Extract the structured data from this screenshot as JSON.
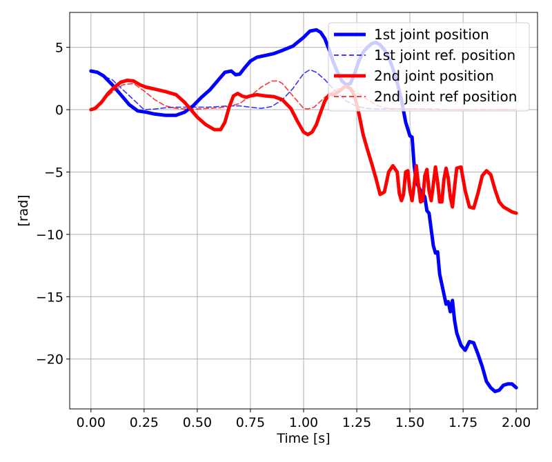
{
  "chart_data": {
    "type": "line",
    "title": "",
    "xlabel": "Time [s]",
    "ylabel": "[rad]",
    "xlim": [
      -0.1,
      2.1
    ],
    "ylim": [
      -24.0,
      7.8
    ],
    "xticks": [
      0.0,
      0.25,
      0.5,
      0.75,
      1.0,
      1.25,
      1.5,
      1.75,
      2.0
    ],
    "xtick_labels": [
      "0.00",
      "0.25",
      "0.50",
      "0.75",
      "1.00",
      "1.25",
      "1.50",
      "1.75",
      "2.00"
    ],
    "yticks": [
      5,
      0,
      -5,
      -10,
      -15,
      -20
    ],
    "ytick_labels": [
      "5",
      "0",
      "−5",
      "−10",
      "−15",
      "−20"
    ],
    "grid": true,
    "legend_position": "top-right",
    "series": [
      {
        "name": "1st joint position",
        "color": "#0000ff",
        "style": "solid",
        "x": [
          0.0,
          0.03,
          0.06,
          0.1,
          0.14,
          0.18,
          0.22,
          0.26,
          0.3,
          0.35,
          0.4,
          0.44,
          0.48,
          0.52,
          0.56,
          0.6,
          0.63,
          0.66,
          0.68,
          0.7,
          0.72,
          0.75,
          0.78,
          0.82,
          0.86,
          0.9,
          0.95,
          1.0,
          1.03,
          1.06,
          1.08,
          1.1,
          1.12,
          1.14,
          1.16,
          1.18,
          1.2,
          1.22,
          1.24,
          1.26,
          1.28,
          1.3,
          1.32,
          1.34,
          1.36,
          1.38,
          1.4,
          1.42,
          1.44,
          1.46,
          1.48,
          1.5,
          1.51,
          1.52,
          1.53,
          1.55,
          1.57,
          1.58,
          1.59,
          1.6,
          1.61,
          1.62,
          1.63,
          1.64,
          1.65,
          1.66,
          1.67,
          1.68,
          1.69,
          1.7,
          1.71,
          1.72,
          1.74,
          1.76,
          1.78,
          1.8,
          1.82,
          1.84,
          1.86,
          1.88,
          1.9,
          1.92,
          1.94,
          1.96,
          1.98,
          2.0
        ],
        "y": [
          3.1,
          3.0,
          2.7,
          2.0,
          1.2,
          0.4,
          -0.1,
          -0.2,
          -0.35,
          -0.45,
          -0.45,
          -0.2,
          0.3,
          1.0,
          1.6,
          2.4,
          3.0,
          3.1,
          2.8,
          2.85,
          3.3,
          3.9,
          4.2,
          4.35,
          4.5,
          4.75,
          5.1,
          5.8,
          6.3,
          6.4,
          6.2,
          5.7,
          4.8,
          3.8,
          3.0,
          2.3,
          2.0,
          2.1,
          2.9,
          3.9,
          4.6,
          5.0,
          5.3,
          5.4,
          5.2,
          4.8,
          4.2,
          3.3,
          2.2,
          0.8,
          -1.0,
          -2.1,
          -2.2,
          -4.5,
          -5.8,
          -6.5,
          -7.0,
          -8.1,
          -8.3,
          -9.6,
          -10.9,
          -11.5,
          -11.4,
          -13.2,
          -14.0,
          -14.8,
          -15.6,
          -15.4,
          -16.2,
          -15.3,
          -16.9,
          -17.9,
          -18.9,
          -19.3,
          -18.6,
          -18.7,
          -19.6,
          -20.6,
          -21.8,
          -22.3,
          -22.6,
          -22.5,
          -22.1,
          -22.0,
          -22.0,
          -22.3
        ]
      },
      {
        "name": "1st joint ref. position",
        "color": "#0000ff",
        "style": "dashed",
        "x": [
          0.0,
          0.1,
          0.2,
          0.25,
          0.3,
          0.35,
          0.4,
          0.45,
          0.5,
          0.55,
          0.6,
          0.65,
          0.7,
          0.75,
          0.8,
          0.85,
          0.9,
          0.95,
          1.0,
          1.03,
          1.06,
          1.1,
          1.15,
          1.2,
          1.25,
          1.3,
          1.35,
          1.4,
          1.5,
          1.6,
          1.7,
          1.8,
          1.9,
          2.0
        ],
        "y": [
          3.1,
          2.4,
          0.8,
          0.0,
          0.05,
          0.15,
          0.2,
          0.2,
          0.2,
          0.2,
          0.25,
          0.3,
          0.3,
          0.2,
          0.1,
          0.25,
          0.8,
          1.7,
          2.9,
          3.2,
          3.0,
          2.4,
          1.5,
          0.7,
          0.25,
          0.1,
          0.05,
          0.05,
          0.05,
          0.05,
          0.0,
          0.0,
          0.0,
          0.0
        ]
      },
      {
        "name": "2nd joint position",
        "color": "#ff0000",
        "style": "solid",
        "x": [
          0.0,
          0.02,
          0.05,
          0.08,
          0.11,
          0.14,
          0.17,
          0.2,
          0.23,
          0.26,
          0.3,
          0.35,
          0.4,
          0.44,
          0.47,
          0.5,
          0.54,
          0.58,
          0.61,
          0.63,
          0.65,
          0.67,
          0.69,
          0.71,
          0.73,
          0.75,
          0.78,
          0.82,
          0.86,
          0.9,
          0.94,
          0.97,
          1.0,
          1.02,
          1.04,
          1.06,
          1.08,
          1.1,
          1.12,
          1.14,
          1.17,
          1.19,
          1.2,
          1.22,
          1.24,
          1.26,
          1.28,
          1.3,
          1.32,
          1.34,
          1.36,
          1.38,
          1.4,
          1.42,
          1.44,
          1.45,
          1.46,
          1.47,
          1.48,
          1.49,
          1.5,
          1.51,
          1.52,
          1.53,
          1.54,
          1.55,
          1.56,
          1.57,
          1.58,
          1.59,
          1.6,
          1.61,
          1.62,
          1.63,
          1.64,
          1.65,
          1.66,
          1.67,
          1.68,
          1.69,
          1.7,
          1.71,
          1.72,
          1.74,
          1.76,
          1.78,
          1.8,
          1.82,
          1.84,
          1.86,
          1.88,
          1.9,
          1.92,
          1.94,
          1.96,
          1.98,
          2.0
        ],
        "y": [
          0.0,
          0.1,
          0.6,
          1.3,
          1.8,
          2.2,
          2.35,
          2.3,
          2.0,
          1.8,
          1.65,
          1.45,
          1.2,
          0.6,
          0.0,
          -0.6,
          -1.2,
          -1.6,
          -1.6,
          -1.0,
          0.2,
          1.1,
          1.3,
          1.1,
          1.0,
          1.1,
          1.2,
          1.1,
          1.05,
          0.8,
          0.1,
          -0.9,
          -1.8,
          -2.0,
          -1.8,
          -1.2,
          -0.2,
          0.7,
          1.2,
          1.2,
          1.5,
          1.8,
          1.85,
          1.7,
          1.1,
          -0.3,
          -2.0,
          -3.2,
          -4.3,
          -5.5,
          -6.8,
          -6.6,
          -5.0,
          -4.5,
          -5.0,
          -6.7,
          -7.3,
          -6.8,
          -5.0,
          -4.9,
          -6.5,
          -7.3,
          -6.0,
          -4.5,
          -6.0,
          -7.4,
          -7.3,
          -5.3,
          -4.8,
          -6.5,
          -7.3,
          -6.0,
          -4.6,
          -5.8,
          -7.4,
          -7.4,
          -5.6,
          -4.7,
          -5.5,
          -7.0,
          -7.8,
          -6.2,
          -4.7,
          -4.6,
          -6.5,
          -7.8,
          -7.9,
          -6.7,
          -5.3,
          -4.9,
          -5.2,
          -6.4,
          -7.4,
          -7.8,
          -8.0,
          -8.2,
          -8.3
        ]
      },
      {
        "name": "2nd joint ref position",
        "color": "#ff0000",
        "style": "dashed",
        "x": [
          0.0,
          0.05,
          0.1,
          0.15,
          0.2,
          0.25,
          0.3,
          0.35,
          0.4,
          0.45,
          0.5,
          0.55,
          0.6,
          0.65,
          0.7,
          0.75,
          0.8,
          0.85,
          0.88,
          0.9,
          0.95,
          1.0,
          1.02,
          1.05,
          1.1,
          1.15,
          1.2,
          1.25,
          1.3,
          1.35,
          1.4,
          1.5,
          1.6,
          1.7,
          1.8,
          1.9,
          2.0
        ],
        "y": [
          0.0,
          0.6,
          1.4,
          2.0,
          2.1,
          1.5,
          0.8,
          0.3,
          0.1,
          0.05,
          0.05,
          0.1,
          0.15,
          0.25,
          0.5,
          1.1,
          1.8,
          2.3,
          2.3,
          2.1,
          1.1,
          0.1,
          0.05,
          0.2,
          1.0,
          1.6,
          1.8,
          1.4,
          0.8,
          0.3,
          0.1,
          0.05,
          0.0,
          0.0,
          0.0,
          0.0,
          0.0
        ]
      }
    ]
  }
}
